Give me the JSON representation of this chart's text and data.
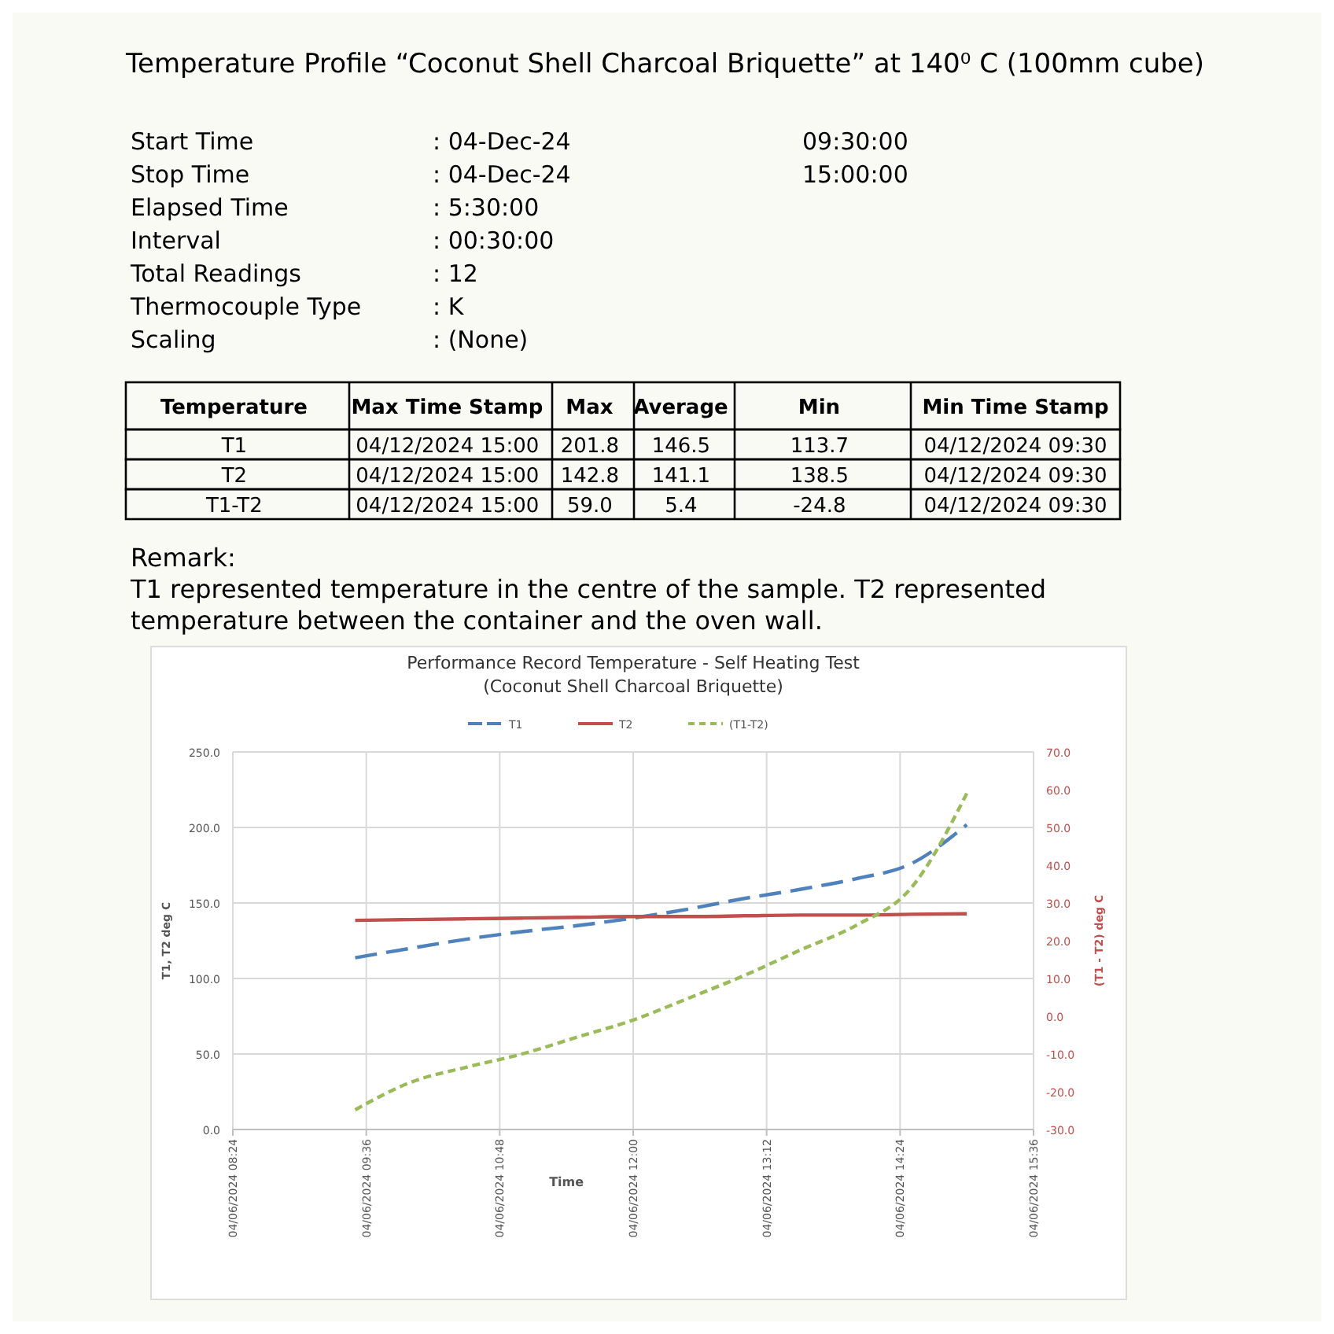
{
  "chart_data": [
    {
      "type": "other",
      "title": "Temperature Profile “Coconut Shell Charcoal Briquette” at 140⁰ C (100mm cube)",
      "annotations": [
        "Start Time\t: 04-Dec-24\t09:30:00",
        "Stop Time\t: 04-Dec-24\t15:00:00",
        "Elapsed Time\t: 5:30:00",
        "Interval\t: 00:30:00",
        "Total Readings\t: 12",
        "Thermocouple Type\t: K",
        "Scaling\t: (None)"
      ]
    },
    {
      "type": "other",
      "annotations": [
        "Temperature\tMax Time Stamp\tMax\tAverage\tMin\tMin Time Stamp",
        "T1\t04/12/2024 15:00\t201.8\t146.5\t113.7\t04/12/2024 09:30",
        "T2\t04/12/2024 15:00\t142.8\t141.1\t138.5\t04/12/2024 09:30",
        "T1-T2\t04/12/2024 15:00\t59.0\t5.4\t-24.8\t04/12/2024 09:30",
        "Remark:",
        "T1 represented temperature in the centre of the sample. T2 represented",
        "temperature between the container and the oven wall."
      ]
    },
    {
      "type": "line",
      "title": "Performance Record Temperature - Self Heating Test",
      "subtitle": "(Coconut Shell Charcoal Briquette)",
      "xlabel": "Time",
      "ylabel": "T1, T2  deg C",
      "y2label": "(T1 - T2) deg C",
      "x": [
        "2024-06-04T09:30",
        "2024-06-04T10:00",
        "2024-06-04T10:30",
        "2024-06-04T11:00",
        "2024-06-04T11:30",
        "2024-06-04T12:00",
        "2024-06-04T12:30",
        "2024-06-04T13:00",
        "2024-06-04T13:30",
        "2024-06-04T14:00",
        "2024-06-04T14:30",
        "2024-06-04T15:00"
      ],
      "xlim": [
        "2024-06-04T08:24",
        "2024-06-04T15:36"
      ],
      "xticks": [
        {
          "value": "2024-06-04T08:24",
          "label": "04/06/2024 08:24"
        },
        {
          "value": "2024-06-04T09:36",
          "label": "04/06/2024 09:36"
        },
        {
          "value": "2024-06-04T10:48",
          "label": "04/06/2024 10:48"
        },
        {
          "value": "2024-06-04T12:00",
          "label": "04/06/2024 12:00"
        },
        {
          "value": "2024-06-04T13:12",
          "label": "04/06/2024 13:12"
        },
        {
          "value": "2024-06-04T14:24",
          "label": "04/06/2024 14:24"
        },
        {
          "value": "2024-06-04T15:36",
          "label": "04/06/2024 15:36"
        }
      ],
      "ylim": [
        0,
        250
      ],
      "yticks": [
        {
          "value": 0,
          "label": "0.0"
        },
        {
          "value": 50,
          "label": "50.0"
        },
        {
          "value": 100,
          "label": "100.0"
        },
        {
          "value": 150,
          "label": "150.0"
        },
        {
          "value": 200,
          "label": "200.0"
        },
        {
          "value": 250,
          "label": "250.0"
        }
      ],
      "y2lim": [
        -30,
        70
      ],
      "y2ticks": [
        {
          "value": -30,
          "label": "-30.0"
        },
        {
          "value": -20,
          "label": "-20.0"
        },
        {
          "value": -10,
          "label": "-10.0"
        },
        {
          "value": 0,
          "label": "0.0"
        },
        {
          "value": 10,
          "label": "10.0"
        },
        {
          "value": 20,
          "label": "20.0"
        },
        {
          "value": 30,
          "label": "30.0"
        },
        {
          "value": 40,
          "label": "40.0"
        },
        {
          "value": 50,
          "label": "50.0"
        },
        {
          "value": 60,
          "label": "60.0"
        },
        {
          "value": 70,
          "label": "70.0"
        }
      ],
      "grid": true,
      "legend": "top",
      "marker": "none",
      "series": [
        {
          "name": "T1",
          "color": "#4f81bd",
          "line_style": "dashed",
          "values": [
            113.7,
            120,
            126,
            131,
            135,
            140,
            146,
            153,
            159,
            166,
            176,
            201.8
          ]
        },
        {
          "name": "T2",
          "color": "#c0504d",
          "line_style": "solid",
          "values": [
            138.5,
            139,
            139.5,
            140,
            140.5,
            141,
            141,
            141.5,
            142,
            142,
            142.5,
            142.8
          ]
        },
        {
          "name": "(T1-T2)",
          "color": "#9bbb59",
          "line_style": "dotted",
          "axis": "y2",
          "values": [
            -24.8,
            -17.5,
            -13.5,
            -10,
            -5.5,
            -1,
            4.8,
            10.8,
            17.5,
            24,
            34,
            59
          ]
        }
      ]
    }
  ]
}
